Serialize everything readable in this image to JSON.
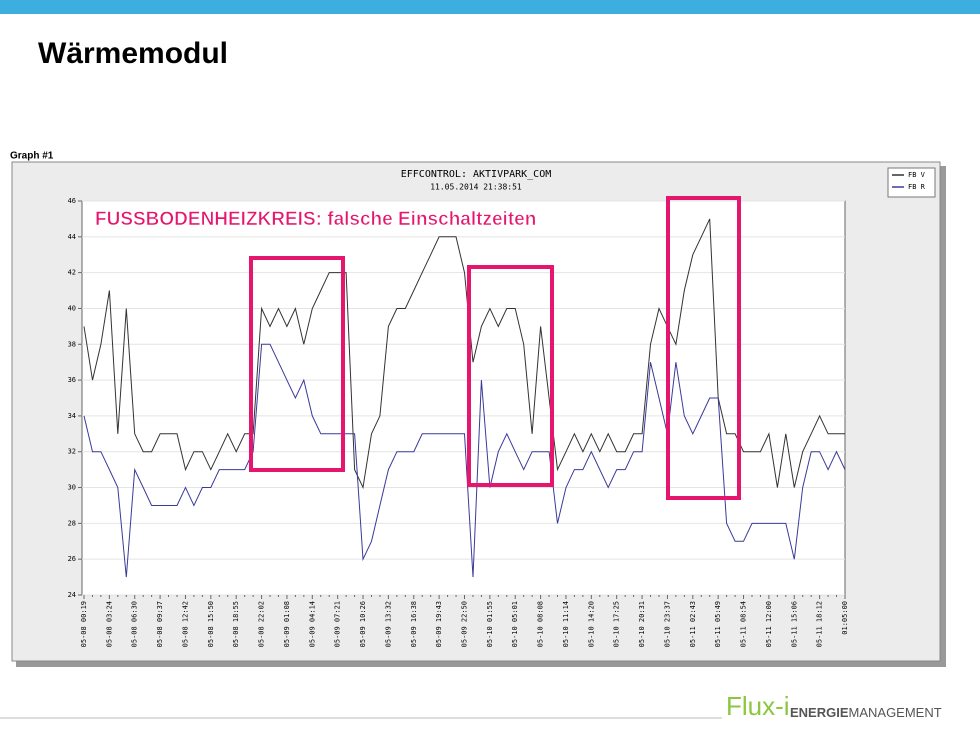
{
  "slide": {
    "title": "Wärmemodul",
    "graph_label": "Graph #1",
    "annotation": "FUSSBODENHEIZKREIS: falsche Einschaltzeiten",
    "logo": {
      "brand": "Flux-i",
      "word1": "ENERGIE",
      "word2": "MANAGEMENT"
    }
  },
  "chart_data": {
    "type": "line",
    "title": "EFFCONTROL: AKTIVPARK_COM",
    "subtitle": "11.05.2014 21:38:51",
    "categories": [
      "05-08 00:19",
      null,
      null,
      "05-08 03:24",
      null,
      null,
      "05-08 06:30",
      null,
      null,
      "05-08 09:37",
      null,
      null,
      "05-08 12:42",
      null,
      null,
      "05-08 15:50",
      null,
      null,
      "05-08 18:55",
      null,
      null,
      "05-08 22:02",
      null,
      null,
      "05-09 01:08",
      null,
      null,
      "05-09 04:14",
      null,
      null,
      "05-09 07:21",
      null,
      null,
      "05-09 10:26",
      null,
      null,
      "05-09 13:32",
      null,
      null,
      "05-09 16:38",
      null,
      null,
      "05-09 19:43",
      null,
      null,
      "05-09 22:50",
      null,
      null,
      "05-10 01:55",
      null,
      null,
      "05-10 05:01",
      null,
      null,
      "05-10 08:08",
      null,
      null,
      "05-10 11:14",
      null,
      null,
      "05-10 14:20",
      null,
      null,
      "05-10 17:25",
      null,
      null,
      "05-10 20:31",
      null,
      null,
      "05-10 23:37",
      null,
      null,
      "05-11 02:43",
      null,
      null,
      "05-11 05:49",
      null,
      null,
      "05-11 08:54",
      null,
      null,
      "05-11 12:00",
      null,
      null,
      "05-11 15:06",
      null,
      null,
      "05-11 18:12",
      null,
      null,
      "01:05:00"
    ],
    "series": [
      {
        "name": "FB V",
        "color": "#333333",
        "values": [
          39,
          36,
          38,
          41,
          33,
          40,
          33,
          32,
          32,
          33,
          33,
          33,
          31,
          32,
          32,
          31,
          32,
          33,
          32,
          33,
          33,
          40,
          39,
          40,
          39,
          40,
          38,
          40,
          41,
          42,
          42,
          42,
          31,
          30,
          33,
          34,
          39,
          40,
          40,
          41,
          42,
          43,
          44,
          44,
          44,
          42,
          37,
          39,
          40,
          39,
          40,
          40,
          38,
          33,
          39,
          35,
          31,
          32,
          33,
          32,
          33,
          32,
          33,
          32,
          32,
          33,
          33,
          38,
          40,
          39,
          38,
          41,
          43,
          44,
          45,
          35,
          33,
          33,
          32,
          32,
          32,
          33,
          30,
          33,
          30,
          32,
          33,
          34,
          33,
          33,
          33
        ]
      },
      {
        "name": "FB R",
        "color": "#3a3a9a",
        "values": [
          34,
          32,
          32,
          31,
          30,
          25,
          31,
          30,
          29,
          29,
          29,
          29,
          30,
          29,
          30,
          30,
          31,
          31,
          31,
          31,
          32,
          38,
          38,
          37,
          36,
          35,
          36,
          34,
          33,
          33,
          33,
          33,
          33,
          26,
          27,
          29,
          31,
          32,
          32,
          32,
          33,
          33,
          33,
          33,
          33,
          33,
          25,
          36,
          30,
          32,
          33,
          32,
          31,
          32,
          32,
          32,
          28,
          30,
          31,
          31,
          32,
          31,
          30,
          31,
          31,
          32,
          32,
          37,
          35,
          33,
          37,
          34,
          33,
          34,
          35,
          35,
          28,
          27,
          27,
          28,
          28,
          28,
          28,
          28,
          26,
          30,
          32,
          32,
          31,
          32,
          31
        ]
      }
    ],
    "ylim": [
      24,
      46
    ],
    "yticks": [
      24,
      26,
      28,
      30,
      32,
      34,
      36,
      38,
      40,
      42,
      44,
      46
    ],
    "grid": true,
    "legend": "top-right"
  }
}
